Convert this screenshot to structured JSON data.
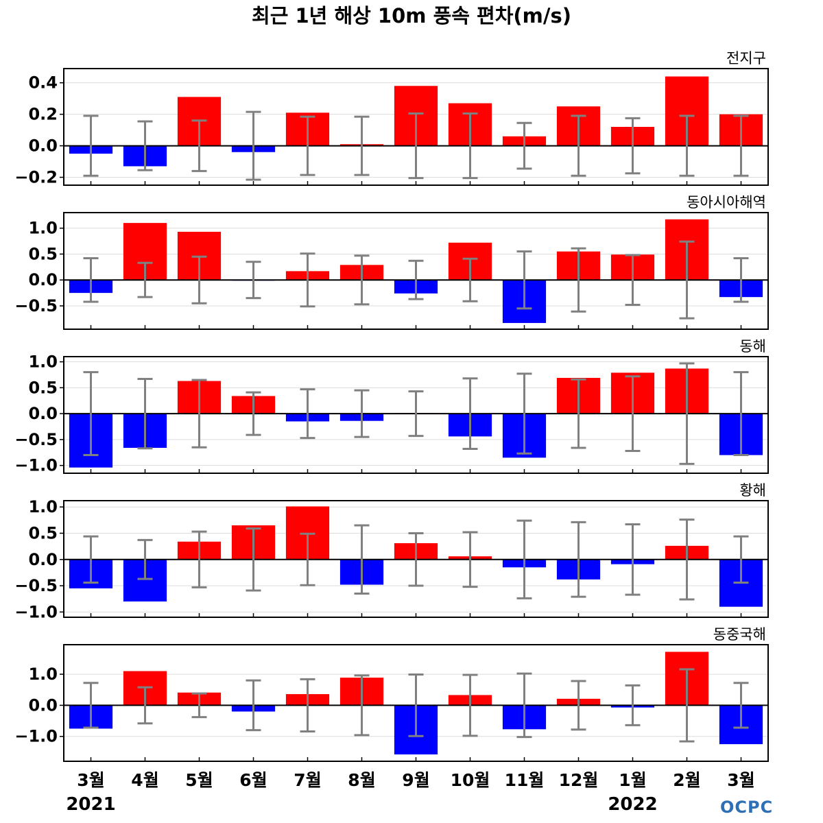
{
  "title": "최근 1년 해상 10m 풍속 편차(m/s)",
  "logo_text": "OCPC",
  "colors": {
    "positive": "#ff0000",
    "negative": "#0000ff",
    "errorbar": "#808080",
    "zero_line": "#000000",
    "grid": "#dcdcdc"
  },
  "chart_data": [
    {
      "type": "bar",
      "title": "전지구",
      "categories": [
        "3월",
        "4월",
        "5월",
        "6월",
        "7월",
        "8월",
        "9월",
        "10월",
        "11월",
        "12월",
        "1월",
        "2월",
        "3월"
      ],
      "values": [
        -0.05,
        -0.13,
        0.31,
        -0.04,
        0.21,
        0.01,
        0.38,
        0.27,
        0.06,
        0.25,
        0.12,
        0.44,
        0.2
      ],
      "error": [
        0.19,
        0.155,
        0.16,
        0.215,
        0.185,
        0.185,
        0.205,
        0.205,
        0.145,
        0.19,
        0.175,
        0.19,
        0.19
      ],
      "ylim": [
        -0.25,
        0.49
      ],
      "yticks": [
        -0.2,
        0.0,
        0.2,
        0.4
      ],
      "ytick_labels": [
        "−0.2",
        "0.0",
        "0.2",
        "0.4"
      ]
    },
    {
      "type": "bar",
      "title": "동아시아해역",
      "categories": [
        "3월",
        "4월",
        "5월",
        "6월",
        "7월",
        "8월",
        "9월",
        "10월",
        "11월",
        "12월",
        "1월",
        "2월",
        "3월"
      ],
      "values": [
        -0.25,
        1.1,
        0.93,
        -0.01,
        0.17,
        0.29,
        -0.26,
        0.72,
        -0.83,
        0.55,
        0.49,
        1.17,
        -0.33
      ],
      "error": [
        0.42,
        0.33,
        0.45,
        0.35,
        0.51,
        0.47,
        0.37,
        0.41,
        0.55,
        0.61,
        0.48,
        0.74,
        0.42
      ],
      "ylim": [
        -0.95,
        1.3
      ],
      "yticks": [
        -0.5,
        0.0,
        0.5,
        1.0
      ],
      "ytick_labels": [
        "−0.5",
        "0.0",
        "0.5",
        "1.0"
      ]
    },
    {
      "type": "bar",
      "title": "동해",
      "categories": [
        "3월",
        "4월",
        "5월",
        "6월",
        "7월",
        "8월",
        "9월",
        "10월",
        "11월",
        "12월",
        "1월",
        "2월",
        "3월"
      ],
      "values": [
        -1.04,
        -0.66,
        0.63,
        0.34,
        -0.15,
        -0.14,
        0.01,
        -0.44,
        -0.85,
        0.69,
        0.79,
        0.87,
        -0.8
      ],
      "error": [
        0.8,
        0.67,
        0.65,
        0.41,
        0.47,
        0.45,
        0.43,
        0.68,
        0.77,
        0.66,
        0.72,
        0.97,
        0.8
      ],
      "ylim": [
        -1.15,
        1.1
      ],
      "yticks": [
        -1.0,
        -0.5,
        0.0,
        0.5,
        1.0
      ],
      "ytick_labels": [
        "−1.0",
        "−0.5",
        "0.0",
        "0.5",
        "1.0"
      ]
    },
    {
      "type": "bar",
      "title": "황해",
      "categories": [
        "3월",
        "4월",
        "5월",
        "6월",
        "7월",
        "8월",
        "9월",
        "10월",
        "11월",
        "12월",
        "1월",
        "2월",
        "3월"
      ],
      "values": [
        -0.55,
        -0.8,
        0.34,
        0.65,
        1.01,
        -0.48,
        0.31,
        0.06,
        -0.15,
        -0.38,
        -0.09,
        0.26,
        -0.9
      ],
      "error": [
        0.44,
        0.37,
        0.53,
        0.59,
        0.49,
        0.65,
        0.5,
        0.52,
        0.74,
        0.71,
        0.67,
        0.76,
        0.44
      ],
      "ylim": [
        -1.1,
        1.12
      ],
      "yticks": [
        -1.0,
        -0.5,
        0.0,
        0.5,
        1.0
      ],
      "ytick_labels": [
        "−1.0",
        "−0.5",
        "0.0",
        "0.5",
        "1.0"
      ]
    },
    {
      "type": "bar",
      "title": "동중국해",
      "categories": [
        "3월",
        "4월",
        "5월",
        "6월",
        "7월",
        "8월",
        "9월",
        "10월",
        "11월",
        "12월",
        "1월",
        "2월",
        "3월"
      ],
      "values": [
        -0.75,
        1.1,
        0.41,
        -0.2,
        0.36,
        0.89,
        -1.58,
        0.33,
        -0.77,
        0.21,
        -0.07,
        1.72,
        -1.25
      ],
      "error": [
        0.72,
        0.58,
        0.38,
        0.8,
        0.84,
        0.96,
        0.99,
        0.98,
        1.02,
        0.78,
        0.64,
        1.16,
        0.72
      ],
      "ylim": [
        -1.8,
        1.95
      ],
      "yticks": [
        -1.0,
        0.0,
        1.0
      ],
      "ytick_labels": [
        "−1.0",
        "0.0",
        "1.0"
      ]
    }
  ],
  "x_labels": [
    "3월",
    "4월",
    "5월",
    "6월",
    "7월",
    "8월",
    "9월",
    "10월",
    "11월",
    "12월",
    "1월",
    "2월",
    "3월"
  ],
  "years": [
    {
      "label": "2021",
      "at_index": 0
    },
    {
      "label": "2022",
      "at_index": 10
    }
  ]
}
